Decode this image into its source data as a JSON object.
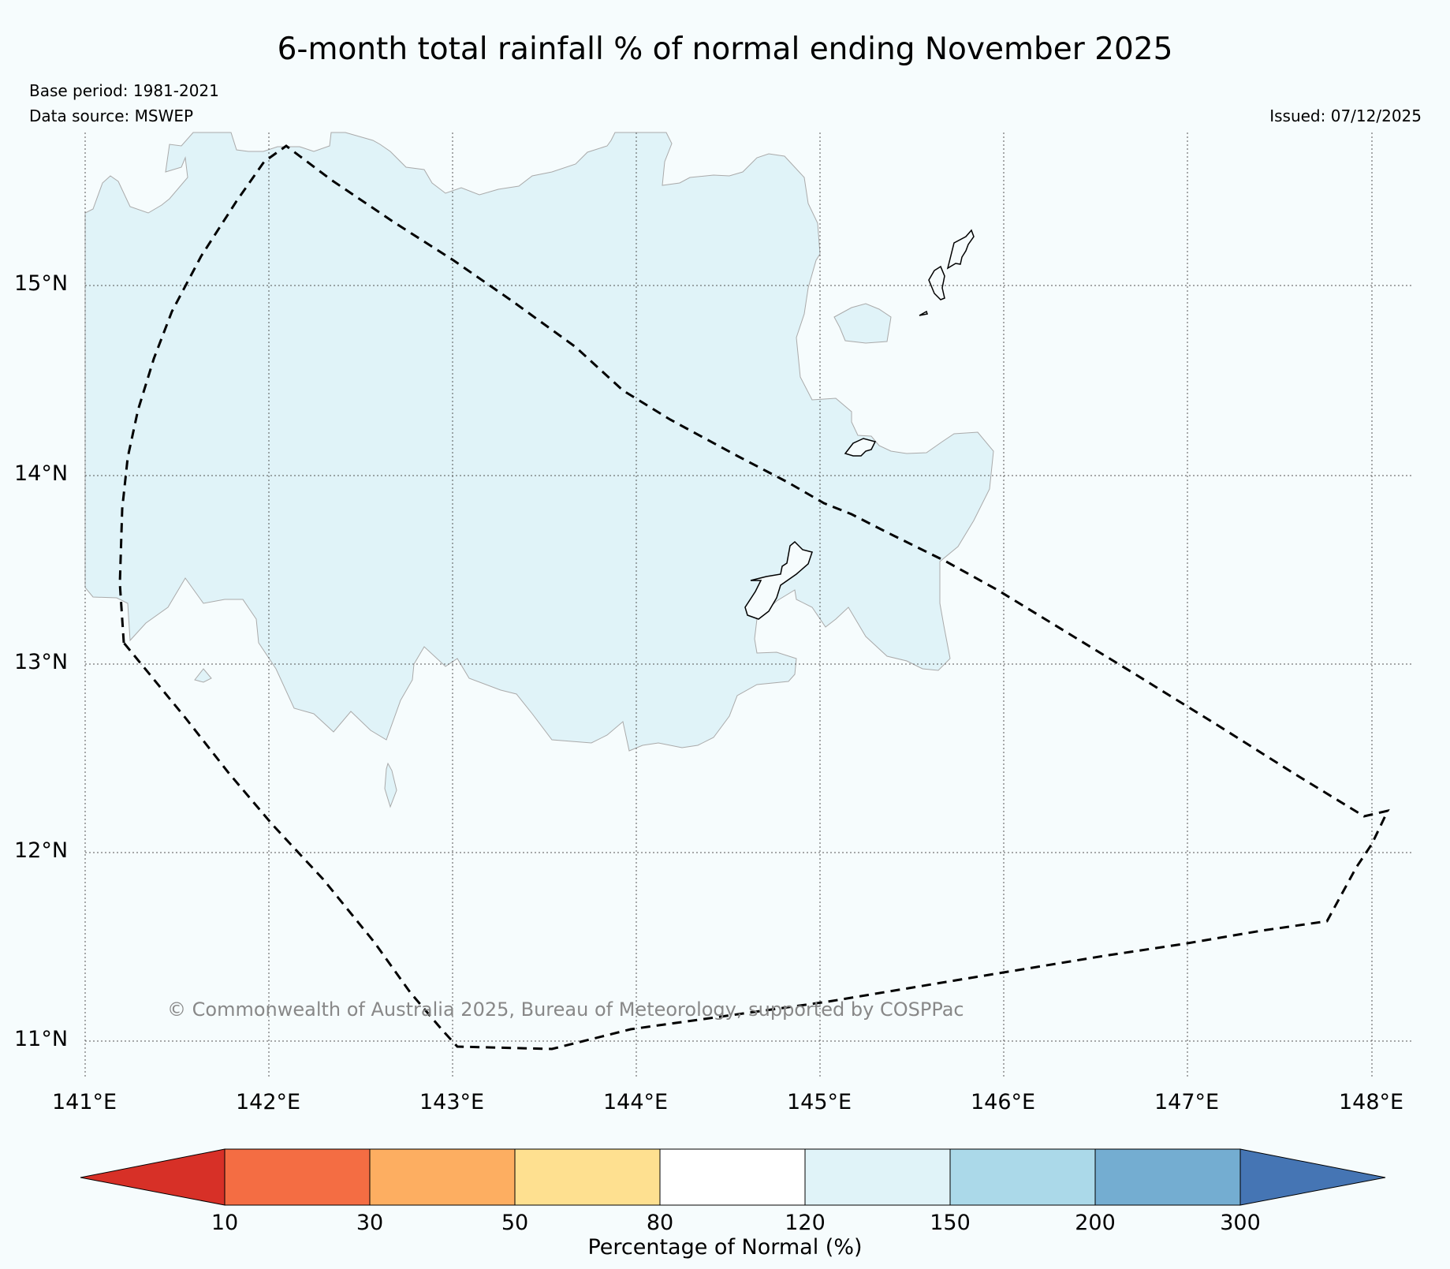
{
  "map": {
    "title": "6-month total rainfall % of normal ending November 2025",
    "base_period": "Base period: 1981-2021",
    "data_source": "Data source: MSWEP",
    "issued": "Issued: 07/12/2025",
    "credit": "© Commonwealth of Australia 2025, Bureau of Meteorology, supported by COSPPac",
    "land_color": "#e0f3f8",
    "background_color": "#f6fcfd",
    "lat_labels": [
      "15°N",
      "14°N",
      "13°N",
      "12°N",
      "11°N"
    ],
    "lon_labels": [
      "141°E",
      "142°E",
      "143°E",
      "144°E",
      "145°E",
      "146°E",
      "147°E",
      "148°E"
    ]
  },
  "legend": {
    "title": "Percentage of Normal (%)",
    "ticks": [
      "10",
      "30",
      "50",
      "80",
      "120",
      "150",
      "200",
      "300"
    ],
    "colors": [
      "#d73027",
      "#f46d43",
      "#fdae61",
      "#fee090",
      "#ffffff",
      "#e0f3f8",
      "#abd9e9",
      "#74add1",
      "#4575b4"
    ]
  }
}
